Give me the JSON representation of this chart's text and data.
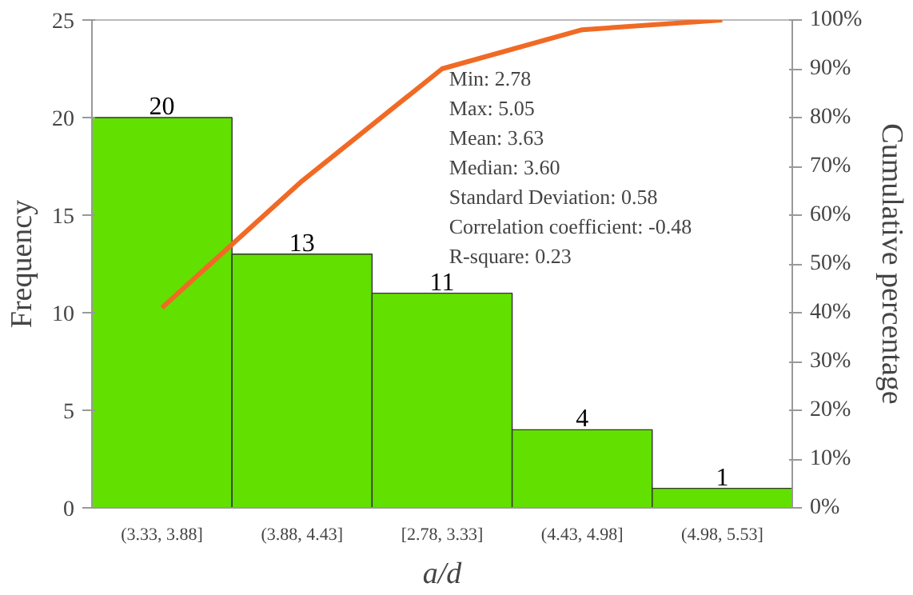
{
  "chart_data": {
    "type": "bar",
    "xlabel": "a/d",
    "ylabel": "Frequency",
    "y2label": "Cumulative percentage",
    "categories": [
      "(3.33, 3.88]",
      "(3.88, 4.43]",
      "[2.78, 3.33]",
      "(4.43, 4.98]",
      "(4.98, 5.53]"
    ],
    "series": [
      {
        "color": "#62e000",
        "values": [
          20,
          13,
          11,
          4,
          1
        ],
        "value_labels": [
          "20",
          "13",
          "11",
          "4",
          "1"
        ]
      },
      {
        "type": "line",
        "color": "#f06a25",
        "axis": "y2",
        "values": [
          41,
          67,
          90,
          98,
          100
        ]
      }
    ],
    "ylim": [
      0,
      25
    ],
    "yticks": [
      0,
      5,
      10,
      15,
      20,
      25
    ],
    "y2lim": [
      0,
      100
    ],
    "y2ticks": [
      {
        "value": 0,
        "label": "0%"
      },
      {
        "value": 10,
        "label": "10%"
      },
      {
        "value": 20,
        "label": "20%"
      },
      {
        "value": 30,
        "label": "30%"
      },
      {
        "value": 40,
        "label": "40%"
      },
      {
        "value": 50,
        "label": "50%"
      },
      {
        "value": 60,
        "label": "60%"
      },
      {
        "value": 70,
        "label": "70%"
      },
      {
        "value": 80,
        "label": "80%"
      },
      {
        "value": 90,
        "label": "90%"
      },
      {
        "value": 100,
        "label": "100%"
      }
    ],
    "annotations": [
      "Min: 2.78",
      "Max: 5.05",
      "Mean: 3.63",
      "Median: 3.60",
      "Standard Deviation: 0.58",
      "Correlation coefficient: -0.48",
      "R-square: 0.23"
    ],
    "grid": false,
    "legend": false
  }
}
